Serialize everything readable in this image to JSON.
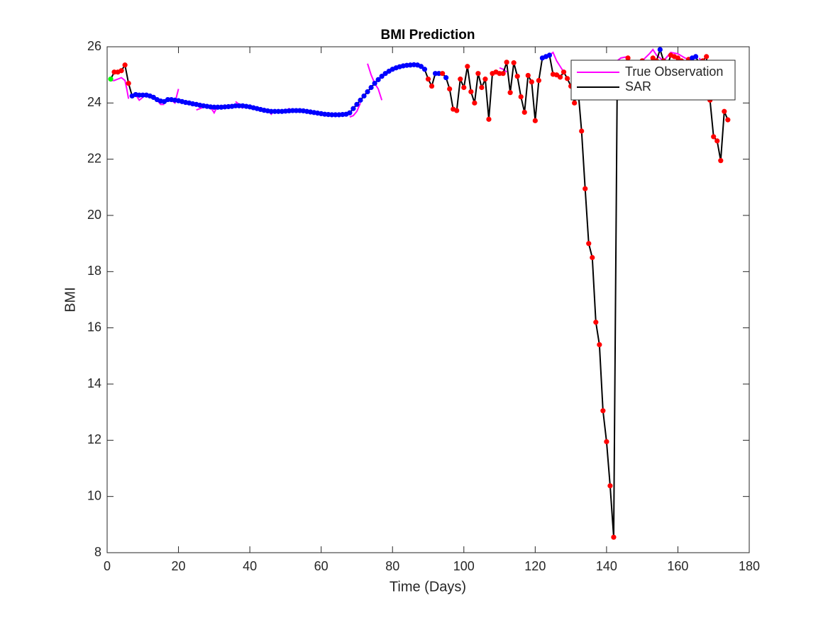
{
  "chart_data": {
    "type": "line",
    "title": "BMI Prediction",
    "x_label": "Time (Days)",
    "y_label": "BMI",
    "xlim": [
      0,
      180
    ],
    "xticks": [
      0,
      20,
      40,
      60,
      80,
      100,
      120,
      140,
      160,
      180
    ],
    "ylim": [
      8,
      26
    ],
    "yticks": [
      8,
      10,
      12,
      14,
      16,
      18,
      20,
      22,
      24,
      26
    ],
    "legend": "northeast",
    "series": [
      {
        "name": "True Observation",
        "color": "#ff00ff",
        "x": [
          1,
          2,
          3,
          4,
          5,
          5.5,
          6,
          6.5,
          8,
          9,
          10,
          11,
          14,
          15,
          16,
          17,
          18,
          19,
          20,
          21,
          25,
          27,
          28,
          29,
          30,
          31,
          32,
          36,
          37,
          38,
          39,
          45,
          46,
          47,
          48,
          50,
          51,
          52,
          53,
          68,
          69,
          70,
          71,
          72,
          73,
          74,
          75,
          76,
          77,
          78,
          80,
          82,
          84,
          85,
          110,
          111,
          112,
          113,
          122,
          123,
          124,
          125,
          126,
          127,
          128,
          129,
          143,
          144,
          146,
          148,
          150,
          152,
          153,
          154,
          156,
          158,
          160,
          162,
          164,
          165,
          166,
          167,
          168,
          169
        ],
        "values": [
          24.8,
          24.8,
          24.85,
          24.9,
          24.8,
          24.5,
          24.15,
          null,
          24.3,
          24.1,
          24.2,
          null,
          24.1,
          23.95,
          23.95,
          null,
          24.1,
          24.0,
          24.5,
          null,
          23.75,
          23.85,
          null,
          23.85,
          23.65,
          23.9,
          null,
          24.05,
          23.95,
          23.8,
          null,
          23.75,
          23.6,
          23.75,
          null,
          23.72,
          23.8,
          23.72,
          null,
          23.5,
          23.55,
          23.7,
          24.0,
          null,
          25.4,
          25.0,
          24.7,
          24.5,
          24.1,
          null,
          25.2,
          25.32,
          25.38,
          null,
          25.25,
          25.2,
          25.1,
          null,
          25.6,
          25.65,
          25.7,
          25.8,
          25.5,
          25.3,
          25.1,
          null,
          25.5,
          25.6,
          25.65,
          null,
          25.5,
          25.75,
          25.9,
          25.7,
          25.5,
          25.8,
          25.75,
          25.6,
          25.5,
          null,
          25.6,
          25.4,
          25.2,
          24.3
        ]
      },
      {
        "name": "SAR",
        "color": "#000000",
        "x": [
          1,
          2,
          3,
          4,
          5,
          6,
          7,
          8,
          9,
          10,
          11,
          12,
          13,
          14,
          15,
          16,
          17,
          18,
          19,
          20,
          21,
          22,
          23,
          24,
          25,
          26,
          27,
          28,
          29,
          30,
          31,
          32,
          33,
          34,
          35,
          36,
          37,
          38,
          39,
          40,
          41,
          42,
          43,
          44,
          45,
          46,
          47,
          48,
          49,
          50,
          51,
          52,
          53,
          54,
          55,
          56,
          57,
          58,
          59,
          60,
          61,
          62,
          63,
          64,
          65,
          66,
          67,
          68,
          69,
          70,
          71,
          72,
          73,
          74,
          75,
          76,
          77,
          78,
          79,
          80,
          81,
          82,
          83,
          84,
          85,
          86,
          87,
          88,
          89,
          90,
          91,
          92,
          93,
          94,
          95,
          96,
          97,
          98,
          99,
          100,
          101,
          102,
          103,
          104,
          105,
          106,
          107,
          108,
          109,
          110,
          111,
          112,
          113,
          114,
          115,
          116,
          117,
          118,
          119,
          120,
          121,
          122,
          123,
          124,
          125,
          126,
          127,
          128,
          129,
          130,
          131,
          132,
          133,
          134,
          135,
          136,
          137,
          138,
          139,
          140,
          141,
          142,
          143,
          144,
          145,
          146,
          147,
          148,
          149,
          150,
          151,
          152,
          153,
          154,
          155,
          156,
          157,
          158,
          159,
          160,
          161,
          162,
          163,
          164,
          165,
          166,
          167,
          168,
          169,
          170,
          171,
          172,
          173,
          174
        ],
        "values": [
          24.85,
          25.1,
          25.1,
          25.15,
          25.35,
          24.7,
          24.25,
          24.3,
          24.28,
          24.28,
          24.28,
          24.25,
          24.2,
          24.12,
          24.07,
          24.05,
          24.12,
          24.12,
          24.1,
          24.08,
          24.05,
          24.02,
          24.0,
          23.97,
          23.95,
          23.92,
          23.9,
          23.88,
          23.86,
          23.85,
          23.85,
          23.85,
          23.86,
          23.87,
          23.88,
          23.9,
          23.9,
          23.9,
          23.88,
          23.86,
          23.83,
          23.8,
          23.77,
          23.74,
          23.72,
          23.7,
          23.7,
          23.7,
          23.7,
          23.71,
          23.72,
          23.73,
          23.73,
          23.73,
          23.72,
          23.7,
          23.68,
          23.66,
          23.64,
          23.62,
          23.6,
          23.59,
          23.58,
          23.58,
          23.58,
          23.59,
          23.6,
          23.65,
          23.8,
          23.95,
          24.1,
          24.25,
          24.4,
          24.55,
          24.7,
          24.83,
          24.95,
          25.05,
          25.13,
          25.2,
          25.25,
          25.29,
          25.32,
          25.34,
          25.35,
          25.36,
          25.35,
          25.3,
          25.2,
          24.85,
          24.6,
          25.05,
          25.05,
          25.05,
          24.9,
          24.5,
          23.78,
          23.73,
          24.85,
          24.55,
          25.3,
          24.4,
          24.0,
          25.05,
          24.55,
          24.85,
          23.42,
          25.05,
          25.1,
          25.05,
          25.05,
          25.45,
          24.37,
          25.43,
          24.95,
          24.22,
          23.67,
          24.98,
          24.75,
          23.37,
          24.8,
          25.6,
          25.65,
          25.7,
          25.02,
          25.0,
          24.92,
          25.1,
          24.87,
          24.6,
          24.0,
          24.5,
          23.0,
          20.95,
          19.0,
          18.5,
          16.2,
          15.4,
          13.05,
          11.95,
          10.38,
          8.55,
          24.9,
          25.3,
          25.4,
          25.6,
          25.3,
          25.4,
          25.2,
          25.5,
          25.3,
          25.4,
          25.6,
          25.5,
          25.9,
          25.5,
          25.3,
          25.7,
          25.65,
          25.6,
          25.5,
          25.4,
          25.55,
          25.6,
          25.65,
          25.4,
          25.5,
          25.65,
          24.1,
          22.8,
          22.65,
          21.95,
          23.7,
          23.4
        ],
        "marker_colors": [
          "#00ff00",
          "#ff0000",
          "#ff0000",
          "#ff0000",
          "#ff0000",
          "#ff0000",
          "#0000ff",
          "#0000ff",
          "#0000ff",
          "#0000ff",
          "#0000ff",
          "#0000ff",
          "#0000ff",
          "#0000ff",
          "#0000ff",
          "#0000ff",
          "#0000ff",
          "#0000ff",
          "#0000ff",
          "#0000ff",
          "#0000ff",
          "#0000ff",
          "#0000ff",
          "#0000ff",
          "#0000ff",
          "#0000ff",
          "#0000ff",
          "#0000ff",
          "#0000ff",
          "#0000ff",
          "#0000ff",
          "#0000ff",
          "#0000ff",
          "#0000ff",
          "#0000ff",
          "#0000ff",
          "#0000ff",
          "#0000ff",
          "#0000ff",
          "#0000ff",
          "#0000ff",
          "#0000ff",
          "#0000ff",
          "#0000ff",
          "#0000ff",
          "#0000ff",
          "#0000ff",
          "#0000ff",
          "#0000ff",
          "#0000ff",
          "#0000ff",
          "#0000ff",
          "#0000ff",
          "#0000ff",
          "#0000ff",
          "#0000ff",
          "#0000ff",
          "#0000ff",
          "#0000ff",
          "#0000ff",
          "#0000ff",
          "#0000ff",
          "#0000ff",
          "#0000ff",
          "#0000ff",
          "#0000ff",
          "#0000ff",
          "#0000ff",
          "#0000ff",
          "#0000ff",
          "#0000ff",
          "#0000ff",
          "#0000ff",
          "#0000ff",
          "#0000ff",
          "#0000ff",
          "#0000ff",
          "#0000ff",
          "#0000ff",
          "#0000ff",
          "#0000ff",
          "#0000ff",
          "#0000ff",
          "#0000ff",
          "#0000ff",
          "#0000ff",
          "#0000ff",
          "#0000ff",
          "#0000ff",
          "#ff0000",
          "#ff0000",
          "#0000ff",
          "#0000ff",
          "#ff0000",
          "#0000ff",
          "#ff0000",
          "#ff0000",
          "#ff0000",
          "#ff0000",
          "#ff0000",
          "#ff0000",
          "#ff0000",
          "#ff0000",
          "#ff0000",
          "#ff0000",
          "#ff0000",
          "#ff0000",
          "#ff0000",
          "#ff0000",
          "#ff0000",
          "#ff0000",
          "#ff0000",
          "#ff0000",
          "#ff0000",
          "#ff0000",
          "#ff0000",
          "#ff0000",
          "#ff0000",
          "#ff0000",
          "#ff0000",
          "#ff0000",
          "#0000ff",
          "#0000ff",
          "#0000ff",
          "#ff0000",
          "#ff0000",
          "#ff0000",
          "#ff0000",
          "#ff0000",
          "#ff0000",
          "#ff0000",
          "#ff0000",
          "#ff0000",
          "#ff0000",
          "#ff0000",
          "#ff0000",
          "#ff0000",
          "#ff0000",
          "#ff0000",
          "#ff0000",
          "#ff0000",
          "#ff0000",
          "#ff0000",
          "#ff0000",
          "#ff0000",
          "#ff0000",
          "#ff0000",
          "#ff0000",
          "#ff0000",
          "#ff0000",
          "#ff0000",
          "#ff0000",
          "#ff0000",
          "#ff0000",
          "#0000ff",
          "#ff0000",
          "#ff0000",
          "#ff0000",
          "#ff0000",
          "#ff0000",
          "#ff0000",
          "#ff0000",
          "#ff0000",
          "#0000ff",
          "#0000ff",
          "#ff0000",
          "#ff0000",
          "#ff0000",
          "#ff0000",
          "#ff0000",
          "#ff0000",
          "#ff0000",
          "#ff0000",
          "#ff0000"
        ]
      }
    ]
  }
}
